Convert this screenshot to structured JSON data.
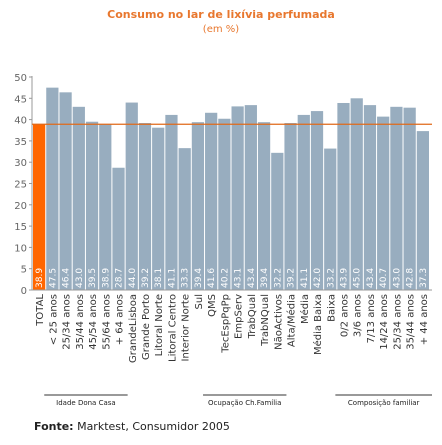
{
  "chart_data": {
    "type": "bar",
    "title": "Consumo no lar de lixívia perfumada",
    "subtitle": "(em %)",
    "categories": [
      "TOTAL",
      "< 25 anos",
      "25/34 anos",
      "35/44 anos",
      "45/54 anos",
      "55/64 anos",
      "+ 64 anos",
      "GrandeLisboa",
      "Grande Porto",
      "Litoral Norte",
      "Litoral Centro",
      "Interior Norte",
      "Sul",
      "QMS",
      "TecEspPqPp",
      "EmpServ",
      "TrabQual",
      "TrabNQual",
      "NãoActivos",
      "Alta/Média",
      "Média",
      "Média Baixa",
      "Baixa",
      "0/2 anos",
      "3/6 anos",
      "7/13 anos",
      "14/24 anos",
      "25/34 anos",
      "35/44 anos",
      "+ 44 anos"
    ],
    "values": [
      38.9,
      47.5,
      46.4,
      43.0,
      39.5,
      38.9,
      28.7,
      44.0,
      39.2,
      38.1,
      41.1,
      33.3,
      39.4,
      41.6,
      40.2,
      43.1,
      43.4,
      39.4,
      32.2,
      39.2,
      41.1,
      42.0,
      33.2,
      43.9,
      45.0,
      43.4,
      40.7,
      43.0,
      42.8,
      37.3
    ],
    "value_labels": [
      "38.9",
      "47.5",
      "46.4",
      "43.0",
      "39.5",
      "38.9",
      "28.7",
      "44.0",
      "39.2",
      "38.1",
      "41.1",
      "33.3",
      "39.4",
      "41.6",
      "40.2",
      "43.1",
      "43.4",
      "39.4",
      "32.2",
      "39.2",
      "41.1",
      "42.0",
      "33.2",
      "43.9",
      "45.0",
      "43.4",
      "40.7",
      "43.0",
      "42.8",
      "37.3"
    ],
    "highlight_index": 0,
    "reference_value": 38.9,
    "ylim": [
      0,
      50
    ],
    "yticks": [
      "0",
      "5",
      "10",
      "15",
      "20",
      "25",
      "30",
      "35",
      "40",
      "45",
      "50"
    ],
    "grid": false,
    "colors": {
      "highlight": "#ff6600",
      "bars": "#98adbf",
      "reference": "#e06a1a",
      "axis": "#999999"
    },
    "groups": [
      {
        "label": "Idade Dona Casa",
        "from": 1,
        "to": 6
      },
      {
        "label": "Ocupação Ch.Família",
        "from": 13,
        "to": 18
      },
      {
        "label": "Composição familiar",
        "from": 23,
        "to": 29
      }
    ]
  },
  "source": {
    "label": "Fonte:",
    "text": " Marktest, Consumidor 2005"
  }
}
